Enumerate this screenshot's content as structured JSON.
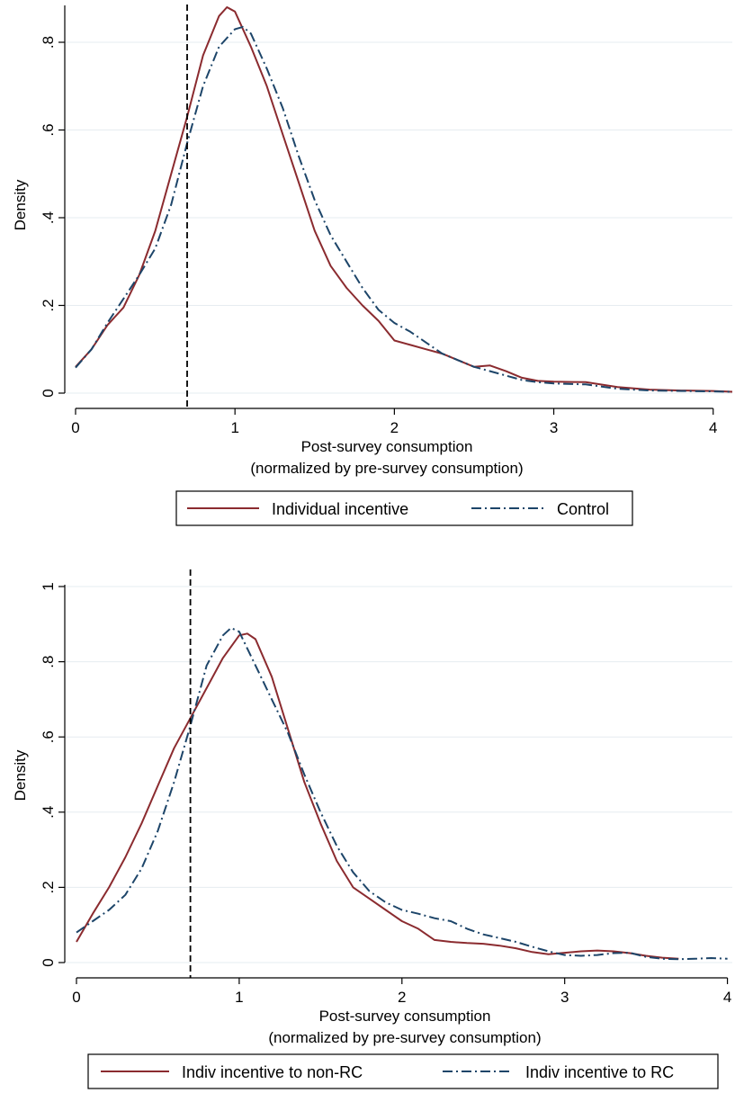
{
  "chart_data": [
    {
      "type": "line",
      "title": "",
      "xlabel": "Post-survey consumption",
      "xlabel2": "(normalized by pre-survey consumption)",
      "ylabel": "Density",
      "xlim": [
        0,
        4.12
      ],
      "ylim": [
        0,
        0.88
      ],
      "xticks": [
        {
          "v": 0,
          "label": "0"
        },
        {
          "v": 1,
          "label": "1"
        },
        {
          "v": 2,
          "label": "2"
        },
        {
          "v": 3,
          "label": "3"
        },
        {
          "v": 4,
          "label": "4"
        }
      ],
      "yticks": [
        {
          "v": 0,
          "label": "0"
        },
        {
          "v": 0.2,
          "label": ".2"
        },
        {
          "v": 0.4,
          "label": ".4"
        },
        {
          "v": 0.6,
          "label": ".6"
        },
        {
          "v": 0.8,
          "label": ".8"
        }
      ],
      "grid": true,
      "vline": 0.7,
      "legend_position": "bottom",
      "series": [
        {
          "name": "Individual incentive",
          "color": "#8b2b2f",
          "dash": "solid",
          "x": [
            0,
            0.1,
            0.2,
            0.3,
            0.4,
            0.5,
            0.6,
            0.7,
            0.8,
            0.9,
            0.95,
            1.0,
            1.1,
            1.2,
            1.3,
            1.4,
            1.5,
            1.6,
            1.7,
            1.8,
            1.9,
            2.0,
            2.1,
            2.2,
            2.3,
            2.4,
            2.5,
            2.6,
            2.7,
            2.8,
            2.9,
            3.0,
            3.2,
            3.4,
            3.6,
            3.8,
            4.0,
            4.12
          ],
          "y": [
            0.06,
            0.1,
            0.155,
            0.195,
            0.27,
            0.37,
            0.5,
            0.63,
            0.77,
            0.86,
            0.88,
            0.87,
            0.79,
            0.7,
            0.59,
            0.48,
            0.37,
            0.29,
            0.24,
            0.2,
            0.165,
            0.12,
            0.11,
            0.1,
            0.09,
            0.075,
            0.06,
            0.063,
            0.05,
            0.035,
            0.028,
            0.026,
            0.025,
            0.014,
            0.008,
            0.006,
            0.005,
            0.003
          ]
        },
        {
          "name": "Control",
          "color": "#1d4569",
          "dash": "dashdot",
          "x": [
            0,
            0.1,
            0.2,
            0.3,
            0.4,
            0.5,
            0.6,
            0.7,
            0.8,
            0.9,
            1.0,
            1.05,
            1.1,
            1.2,
            1.3,
            1.4,
            1.5,
            1.6,
            1.7,
            1.8,
            1.9,
            2.0,
            2.1,
            2.2,
            2.3,
            2.4,
            2.5,
            2.6,
            2.7,
            2.8,
            2.9,
            3.0,
            3.2,
            3.4,
            3.6,
            3.8,
            4.0,
            4.12
          ],
          "y": [
            0.058,
            0.1,
            0.16,
            0.215,
            0.27,
            0.33,
            0.43,
            0.57,
            0.7,
            0.79,
            0.83,
            0.835,
            0.82,
            0.74,
            0.65,
            0.54,
            0.44,
            0.36,
            0.3,
            0.24,
            0.19,
            0.16,
            0.14,
            0.115,
            0.09,
            0.075,
            0.06,
            0.05,
            0.04,
            0.03,
            0.025,
            0.022,
            0.02,
            0.01,
            0.006,
            0.005,
            0.004,
            0.003
          ]
        }
      ],
      "legend": [
        "Individual incentive",
        "Control"
      ]
    },
    {
      "type": "line",
      "title": "",
      "xlabel": "Post-survey consumption",
      "xlabel2": "(normalized by pre-survey consumption)",
      "ylabel": "Density",
      "xlim": [
        0,
        4.03
      ],
      "ylim": [
        0,
        1.0
      ],
      "xticks": [
        {
          "v": 0,
          "label": "0"
        },
        {
          "v": 1,
          "label": "1"
        },
        {
          "v": 2,
          "label": "2"
        },
        {
          "v": 3,
          "label": "3"
        },
        {
          "v": 4,
          "label": "4"
        }
      ],
      "yticks": [
        {
          "v": 0,
          "label": "0"
        },
        {
          "v": 0.2,
          "label": ".2"
        },
        {
          "v": 0.4,
          "label": ".4"
        },
        {
          "v": 0.6,
          "label": ".6"
        },
        {
          "v": 0.8,
          "label": ".8"
        },
        {
          "v": 1.0,
          "label": "1"
        }
      ],
      "grid": true,
      "vline": 0.7,
      "legend_position": "bottom",
      "series": [
        {
          "name": "Indiv incentive to non-RC",
          "color": "#8b2b2f",
          "dash": "solid",
          "x": [
            0,
            0.1,
            0.2,
            0.3,
            0.4,
            0.5,
            0.6,
            0.7,
            0.8,
            0.9,
            1.0,
            1.05,
            1.1,
            1.2,
            1.3,
            1.4,
            1.5,
            1.6,
            1.7,
            1.8,
            1.9,
            2.0,
            2.1,
            2.2,
            2.3,
            2.4,
            2.5,
            2.6,
            2.7,
            2.8,
            2.9,
            3.0,
            3.1,
            3.2,
            3.3,
            3.4,
            3.5,
            3.6,
            3.7
          ],
          "y": [
            0.055,
            0.13,
            0.2,
            0.28,
            0.37,
            0.47,
            0.57,
            0.65,
            0.73,
            0.81,
            0.87,
            0.875,
            0.86,
            0.76,
            0.62,
            0.48,
            0.37,
            0.27,
            0.2,
            0.17,
            0.14,
            0.11,
            0.09,
            0.06,
            0.055,
            0.052,
            0.05,
            0.045,
            0.038,
            0.028,
            0.022,
            0.026,
            0.03,
            0.032,
            0.03,
            0.025,
            0.018,
            0.013,
            0.01
          ]
        },
        {
          "name": "Indiv incentive to RC",
          "color": "#1d4569",
          "dash": "dashdot",
          "x": [
            0,
            0.1,
            0.2,
            0.3,
            0.4,
            0.5,
            0.6,
            0.7,
            0.8,
            0.9,
            0.95,
            1.0,
            1.1,
            1.2,
            1.3,
            1.4,
            1.5,
            1.6,
            1.7,
            1.8,
            1.9,
            2.0,
            2.1,
            2.2,
            2.3,
            2.4,
            2.5,
            2.6,
            2.7,
            2.8,
            2.9,
            3.0,
            3.1,
            3.2,
            3.3,
            3.4,
            3.5,
            3.6,
            3.7,
            3.8,
            3.9,
            4.0
          ],
          "y": [
            0.08,
            0.11,
            0.14,
            0.18,
            0.25,
            0.35,
            0.48,
            0.63,
            0.79,
            0.87,
            0.89,
            0.88,
            0.79,
            0.7,
            0.61,
            0.5,
            0.4,
            0.31,
            0.24,
            0.19,
            0.16,
            0.14,
            0.13,
            0.118,
            0.11,
            0.09,
            0.075,
            0.065,
            0.055,
            0.042,
            0.03,
            0.02,
            0.018,
            0.02,
            0.025,
            0.026,
            0.015,
            0.01,
            0.009,
            0.01,
            0.012,
            0.01
          ]
        }
      ],
      "legend": [
        "Indiv incentive to non-RC",
        "Indiv incentive to RC"
      ]
    }
  ]
}
